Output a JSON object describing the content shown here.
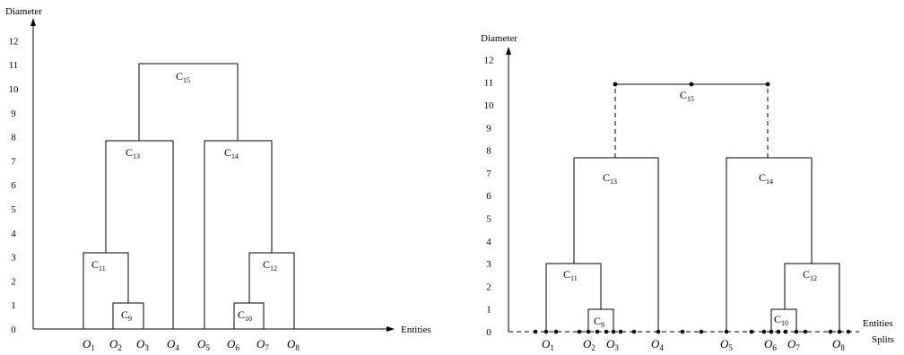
{
  "left": {
    "y_axis_title": "Diameter",
    "x_axis_title": "Entities",
    "ticks": [
      "0",
      "1",
      "2",
      "3",
      "4",
      "5",
      "6",
      "7",
      "8",
      "9",
      "10",
      "11",
      "12"
    ],
    "entities": [
      {
        "base": "O",
        "sub": "1"
      },
      {
        "base": "O",
        "sub": "2"
      },
      {
        "base": "O",
        "sub": "3"
      },
      {
        "base": "O",
        "sub": "4"
      },
      {
        "base": "O",
        "sub": "5"
      },
      {
        "base": "O",
        "sub": "6"
      },
      {
        "base": "O",
        "sub": "7"
      },
      {
        "base": "O",
        "sub": "8"
      }
    ],
    "clusters": [
      {
        "base": "C",
        "sub": "9",
        "diameter": 1
      },
      {
        "base": "C",
        "sub": "10",
        "diameter": 1
      },
      {
        "base": "C",
        "sub": "11",
        "diameter": 3
      },
      {
        "base": "C",
        "sub": "12",
        "diameter": 3
      },
      {
        "base": "C",
        "sub": "13",
        "diameter": 8
      },
      {
        "base": "C",
        "sub": "14",
        "diameter": 8
      },
      {
        "base": "C",
        "sub": "15",
        "diameter": 11
      }
    ]
  },
  "right": {
    "y_axis_title": "Diameter",
    "x_axis_title": "Entities",
    "x_axis_title2": "Splits",
    "ticks": [
      "0",
      "1",
      "2",
      "3",
      "4",
      "5",
      "6",
      "7",
      "8",
      "9",
      "10",
      "11",
      "12"
    ],
    "entities": [
      {
        "base": "O",
        "sub": "1"
      },
      {
        "base": "O",
        "sub": "2"
      },
      {
        "base": "O",
        "sub": "3"
      },
      {
        "base": "O",
        "sub": "4"
      },
      {
        "base": "O",
        "sub": "5"
      },
      {
        "base": "O",
        "sub": "6"
      },
      {
        "base": "O",
        "sub": "7"
      },
      {
        "base": "O",
        "sub": "8"
      }
    ],
    "clusters": [
      {
        "base": "C",
        "sub": "9",
        "diameter": 1
      },
      {
        "base": "C",
        "sub": "10",
        "diameter": 1
      },
      {
        "base": "C",
        "sub": "11",
        "diameter": 3
      },
      {
        "base": "C",
        "sub": "12",
        "diameter": 3
      },
      {
        "base": "C",
        "sub": "13",
        "diameter": 8
      },
      {
        "base": "C",
        "sub": "14",
        "diameter": 8
      },
      {
        "base": "C",
        "sub": "15",
        "diameter": 11.2
      }
    ]
  }
}
